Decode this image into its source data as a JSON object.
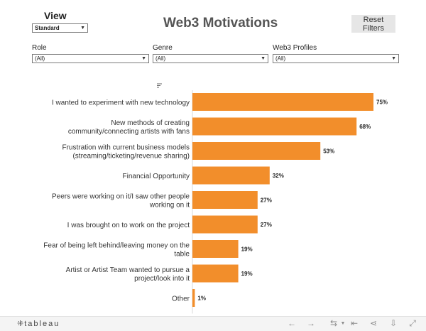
{
  "view": {
    "label": "View",
    "selected": "Standard"
  },
  "title": "Web3 Motivations",
  "reset_button": {
    "line1": "Reset",
    "line2": "Filters"
  },
  "filters": [
    {
      "label": "Role",
      "selected": "(All)"
    },
    {
      "label": "Genre",
      "selected": "(All)"
    },
    {
      "label": "Web3 Profiles",
      "selected": "(All)"
    }
  ],
  "chart_data": {
    "type": "bar",
    "orientation": "horizontal",
    "title": "",
    "xlabel": "",
    "ylabel": "",
    "xlim": [
      0,
      75
    ],
    "color": "#f28e2b",
    "categories": [
      [
        "I wanted to experiment with new technology"
      ],
      [
        "New methods of creating",
        "community/connecting artists with fans"
      ],
      [
        "Frustration with current business models",
        "(streaming/ticketing/revenue sharing)"
      ],
      [
        "Financial Opportunity"
      ],
      [
        "Peers were working on it/I saw other people",
        "working on it"
      ],
      [
        "I was brought on to work on the project"
      ],
      [
        "Fear of being left behind/leaving money on the",
        "table"
      ],
      [
        "Artist or Artist Team wanted to pursue a",
        "project/look into it"
      ],
      [
        "Other"
      ]
    ],
    "values": [
      75,
      68,
      53,
      32,
      27,
      27,
      19,
      19,
      1
    ],
    "data_labels": [
      "75%",
      "68%",
      "53%",
      "32%",
      "27%",
      "27%",
      "19%",
      "19%",
      "1%"
    ]
  },
  "footer": {
    "logo_text": "tableau",
    "icons": [
      "tableau-mark-icon",
      "undo-icon",
      "redo-icon",
      "revert-icon",
      "pause-icon",
      "share-icon",
      "download-icon",
      "fullscreen-icon"
    ]
  }
}
